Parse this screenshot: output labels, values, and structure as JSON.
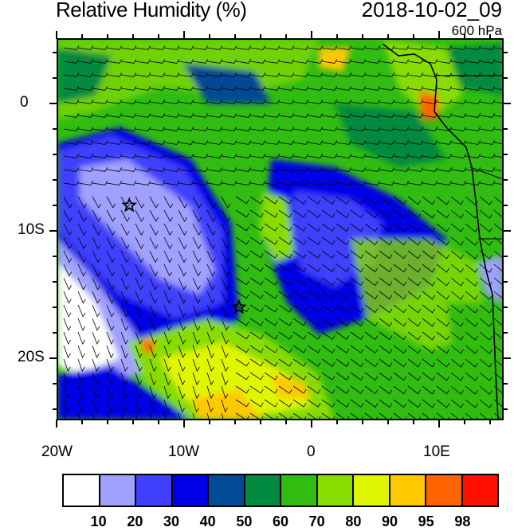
{
  "title": "Relative Humidity (%)",
  "valid_time": "2018-10-02_09",
  "level": "600 hPa",
  "axes": {
    "x_labels": [
      "20W",
      "10W",
      "0",
      "10E"
    ],
    "y_labels": [
      "0",
      "10S",
      "20S"
    ]
  },
  "colorbar": {
    "colors": [
      "#ffffff",
      "#a0a0ff",
      "#4040ff",
      "#0000e8",
      "#004a96",
      "#008a40",
      "#30bc10",
      "#88dc00",
      "#e0f500",
      "#ffc800",
      "#ff6400",
      "#ff1000"
    ],
    "labels": [
      "10",
      "20",
      "30",
      "40",
      "50",
      "60",
      "70",
      "80",
      "90",
      "95",
      "98"
    ]
  },
  "markers": [
    {
      "name": "star",
      "lon": -14.3,
      "lat": -8.0
    },
    {
      "name": "star",
      "lon": -5.7,
      "lat": -16.0
    }
  ]
}
